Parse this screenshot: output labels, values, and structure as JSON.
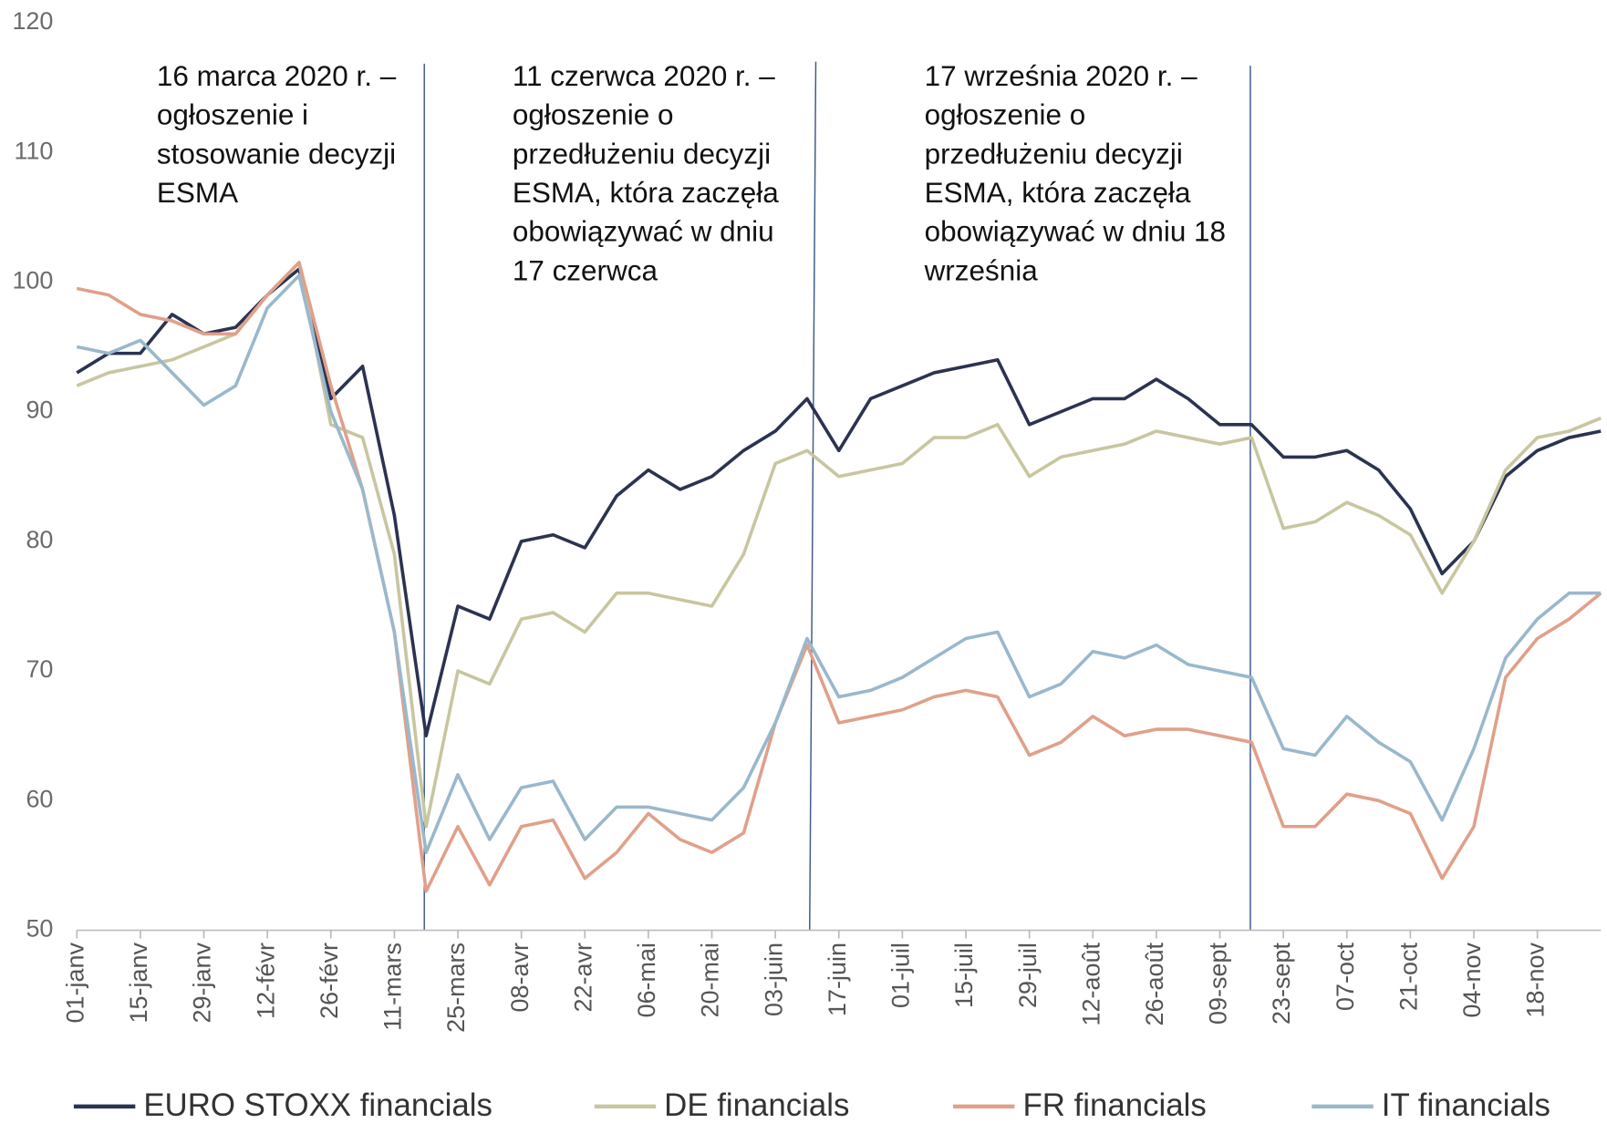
{
  "chart_data": {
    "type": "line",
    "categories": [
      "01-janv",
      null,
      "15-janv",
      null,
      "29-janv",
      null,
      "12-févr",
      null,
      "26-févr",
      null,
      "11-mars",
      null,
      "25-mars",
      null,
      "08-avr",
      null,
      "22-avr",
      null,
      "06-mai",
      null,
      "20-mai",
      null,
      "03-juin",
      null,
      "17-juin",
      null,
      "01-juil",
      null,
      "15-juil",
      null,
      "29-juil",
      null,
      "12-août",
      null,
      "26-août",
      null,
      "09-sept",
      null,
      "23-sept",
      null,
      "07-oct",
      null,
      "21-oct",
      null,
      "04-nov",
      null,
      "18-nov",
      null,
      null
    ],
    "ylim": [
      50,
      120
    ],
    "yticks": [
      50,
      60,
      70,
      80,
      90,
      100,
      110,
      120
    ],
    "series": [
      {
        "name": "EURO STOXX financials",
        "color": "#2b3350",
        "values": [
          93,
          94.5,
          94.5,
          97.5,
          96,
          96.5,
          99,
          101,
          91,
          93.5,
          82,
          65,
          75,
          74,
          80,
          80.5,
          79.5,
          83.5,
          85.5,
          84,
          85,
          87,
          88.5,
          91,
          87,
          91,
          92,
          93,
          93.5,
          94,
          89,
          90,
          91,
          91,
          92.5,
          91,
          89,
          89,
          86.5,
          86.5,
          87,
          85.5,
          82.5,
          77.5,
          80,
          85,
          87,
          88,
          88.5
        ]
      },
      {
        "name": "DE financials",
        "color": "#c8c6a0",
        "values": [
          92,
          93,
          93.5,
          94,
          95,
          96,
          99,
          101.5,
          89,
          88,
          79,
          58,
          70,
          69,
          74,
          74.5,
          73,
          76,
          76,
          75.5,
          75,
          79,
          86,
          87,
          85,
          85.5,
          86,
          88,
          88,
          89,
          85,
          86.5,
          87,
          87.5,
          88.5,
          88,
          87.5,
          88,
          81,
          81.5,
          83,
          82,
          80.5,
          76,
          80,
          85.5,
          88,
          88.5,
          89.5
        ]
      },
      {
        "name": "FR financials",
        "color": "#e0a08a",
        "values": [
          99.5,
          99,
          97.5,
          97,
          96,
          96,
          99,
          101.5,
          92,
          84,
          73,
          53,
          58,
          53.5,
          58,
          58.5,
          54,
          56,
          59,
          57,
          56,
          57.5,
          66,
          72,
          66,
          66.5,
          67,
          68,
          68.5,
          68,
          63.5,
          64.5,
          66.5,
          65,
          65.5,
          65.5,
          65,
          64.5,
          58,
          58,
          60.5,
          60,
          59,
          54,
          58,
          69.5,
          72.5,
          74,
          76
        ]
      },
      {
        "name": "IT financials",
        "color": "#9ab8cc",
        "values": [
          95,
          94.5,
          95.5,
          93,
          90.5,
          92,
          98,
          100.5,
          90,
          84,
          73,
          56,
          62,
          57,
          61,
          61.5,
          57,
          59.5,
          59.5,
          59,
          58.5,
          61,
          66,
          72.5,
          68,
          68.5,
          69.5,
          71,
          72.5,
          73,
          68,
          69,
          71.5,
          71,
          72,
          70.5,
          70,
          69.5,
          64,
          63.5,
          66.5,
          64.5,
          63,
          58.5,
          64,
          71,
          74,
          76,
          76
        ]
      }
    ],
    "annotations": [
      {
        "lines": [
          "16 marca 2020 r. –",
          "ogłoszenie i",
          "stosowanie decyzji",
          "ESMA"
        ]
      },
      {
        "lines": [
          "11 czerwca 2020 r. –",
          "ogłoszenie o",
          "przedłużeniu decyzji",
          "ESMA, która zaczęła",
          "obowiązywać w dniu",
          "17 czerwca"
        ]
      },
      {
        "lines": [
          "17 września 2020 r. –",
          "ogłoszenie o",
          "przedłużeniu decyzji",
          "ESMA, która zaczęła",
          "obowiązywać w dniu 18",
          "września"
        ]
      }
    ]
  }
}
